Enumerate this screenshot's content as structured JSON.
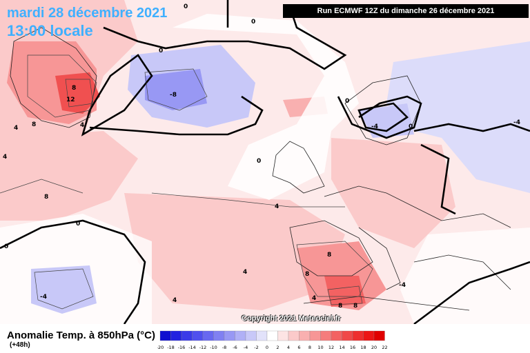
{
  "header": {
    "date_title": "mardi 28 décembre 2021",
    "local_time": "13:00 locale",
    "run_info": "Run ECMWF 12Z du dimanche 26 décembre 2021"
  },
  "footer": {
    "variable_title": "Anomalie Temp. à 850hPa (°C)",
    "lead_time": "(+48h)",
    "copyright": "Copyright 2021 Meteociel.fr"
  },
  "legend": {
    "ticks": [
      "-20",
      "-18",
      "-16",
      "-14",
      "-12",
      "-10",
      "-8",
      "-6",
      "-4",
      "-2",
      "0",
      "2",
      "4",
      "6",
      "8",
      "10",
      "12",
      "14",
      "16",
      "18",
      "20",
      "22"
    ],
    "colors": [
      "#1010d0",
      "#2222e0",
      "#3a3ae8",
      "#5050ee",
      "#6868f0",
      "#8080f2",
      "#9898f4",
      "#b0b0f6",
      "#c8c8f8",
      "#e2e2fa",
      "#ffffff",
      "#fde4e4",
      "#fbcaca",
      "#f9b0b0",
      "#f79696",
      "#f57c7c",
      "#f36262",
      "#f04848",
      "#ee2e2e",
      "#ec1616",
      "#e00000"
    ]
  },
  "map_labels": [
    {
      "text": "0"
    },
    {
      "text": "0"
    },
    {
      "text": "0"
    },
    {
      "text": "0"
    },
    {
      "text": "0"
    },
    {
      "text": "0"
    },
    {
      "text": "0"
    },
    {
      "text": "8"
    },
    {
      "text": "12"
    },
    {
      "text": "8"
    },
    {
      "text": "4"
    },
    {
      "text": "4"
    },
    {
      "text": "8"
    },
    {
      "text": "4"
    },
    {
      "text": "-8"
    },
    {
      "text": "-4"
    },
    {
      "text": "-4"
    },
    {
      "text": "-4"
    },
    {
      "text": "4"
    },
    {
      "text": "4"
    },
    {
      "text": "8"
    },
    {
      "text": "8"
    },
    {
      "text": "4"
    },
    {
      "text": "4"
    },
    {
      "text": "8"
    },
    {
      "text": "8"
    },
    {
      "text": "-4"
    },
    {
      "text": "0"
    }
  ]
}
